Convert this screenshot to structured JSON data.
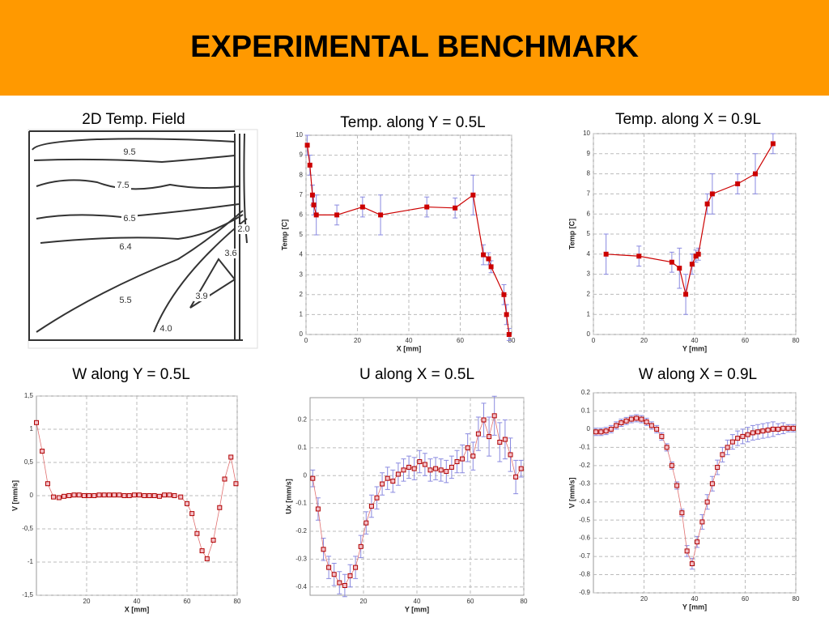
{
  "header": {
    "title": "EXPERIMENTAL BENCHMARK"
  },
  "field": {
    "title": "2D Temp. Field",
    "labels": [
      "9.5",
      "7.5",
      "6.5",
      "6.4",
      "5.5",
      "3.9",
      "4.0",
      "3.6",
      "2.0"
    ]
  },
  "chart_data": [
    {
      "type": "line",
      "title": "Temp. along Y = 0.5L",
      "x_label": "X [mm]",
      "y_label": "Temp [C]",
      "color": "#cc0000",
      "error_color": "#8a8ae0",
      "marker": "filled",
      "grid": true,
      "x": [
        0.5,
        1.5,
        2.5,
        3,
        4,
        12,
        22,
        29,
        47,
        58,
        65,
        69,
        71,
        72,
        77,
        78,
        79
      ],
      "values": [
        9.5,
        8.5,
        7,
        6.5,
        6,
        6,
        6.4,
        6,
        6.4,
        6.35,
        7,
        4,
        3.8,
        3.4,
        2,
        1,
        0
      ],
      "errors": [
        0.5,
        0.5,
        0.5,
        0.5,
        1,
        0.5,
        0.5,
        1,
        0.5,
        0.5,
        1,
        0.5,
        0.3,
        0.3,
        0.5,
        0.5,
        0.3
      ],
      "xlim": [
        0,
        80
      ],
      "xticks": [
        0,
        20,
        40,
        60,
        80
      ],
      "ylim": [
        0,
        10
      ],
      "yticks": [
        0,
        1,
        2,
        3,
        4,
        5,
        6,
        7,
        8,
        9,
        10
      ]
    },
    {
      "type": "line",
      "title": "Temp. along X = 0.9L",
      "x_label": "Y [mm]",
      "y_label": "Temp [C]",
      "color": "#cc0000",
      "error_color": "#8a8ae0",
      "marker": "filled",
      "grid": true,
      "x": [
        5,
        18,
        31,
        34,
        36.5,
        39,
        40.5,
        41.5,
        45,
        47,
        57,
        64,
        71
      ],
      "values": [
        4,
        3.9,
        3.6,
        3.3,
        2,
        3.5,
        3.9,
        4,
        6.5,
        7,
        7.5,
        8,
        9.5
      ],
      "errors": [
        1,
        0.5,
        0.5,
        1,
        1,
        0.5,
        0.3,
        0.3,
        0.5,
        1,
        0.5,
        1,
        0.5
      ],
      "xlim": [
        0,
        80
      ],
      "xticks": [
        0,
        20,
        40,
        60,
        80
      ],
      "ylim": [
        0,
        10
      ],
      "yticks": [
        0,
        1,
        2,
        3,
        4,
        5,
        6,
        7,
        8,
        9,
        10
      ]
    },
    {
      "type": "line",
      "title": "W along Y = 0.5L",
      "x_label": "X [mm]",
      "y_label": "V [mm/s]",
      "color": "#e07070",
      "error_color": "#8a8ae0",
      "marker": "open",
      "grid": true,
      "x": [
        0,
        2.3,
        4.5,
        6.8,
        9,
        11,
        13,
        15,
        17,
        19,
        21,
        23,
        25,
        27,
        29,
        31,
        33,
        35,
        37,
        39,
        41,
        43,
        45,
        47,
        49,
        51,
        53,
        55,
        57.5,
        60,
        62,
        64,
        66,
        68,
        70.5,
        73,
        75,
        77.5,
        79.5
      ],
      "values": [
        1.1,
        0.67,
        0.18,
        -0.02,
        -0.03,
        -0.01,
        0,
        0.01,
        0.01,
        0,
        0,
        0,
        0.01,
        0.01,
        0.01,
        0.01,
        0.01,
        0,
        0,
        0.01,
        0.01,
        0,
        0,
        0,
        -0.01,
        0.01,
        0.01,
        0,
        -0.02,
        -0.12,
        -0.27,
        -0.57,
        -0.83,
        -0.95,
        -0.67,
        -0.18,
        0.25,
        0.58,
        0.18
      ],
      "xlim": [
        0,
        80
      ],
      "xticks": [
        20,
        40,
        60,
        80
      ],
      "ylim": [
        -1.5,
        1.5
      ],
      "yticks": [
        {
          "value": -1.5,
          "label": "-1,5"
        },
        -1,
        {
          "value": -0.5,
          "label": "-0,5"
        },
        0,
        {
          "value": 0.5,
          "label": "0,5"
        },
        1,
        {
          "value": 1.5,
          "label": "1,5"
        }
      ]
    },
    {
      "type": "line",
      "title": "U along X = 0.5L",
      "x_label": "Y [mm]",
      "y_label": "Ux [mm/s]",
      "color": "#e07070",
      "error_color": "#8a8ae0",
      "marker": "open",
      "grid": true,
      "x": [
        1,
        3,
        5,
        7,
        9,
        11,
        13,
        15,
        17,
        19,
        21,
        23,
        25,
        27,
        29,
        31,
        33,
        35,
        37,
        39,
        41,
        43,
        45,
        47,
        49,
        51,
        53,
        55,
        57,
        59,
        61,
        63,
        65,
        67,
        69,
        71,
        73,
        75,
        77,
        79
      ],
      "values": [
        -0.01,
        -0.12,
        -0.265,
        -0.33,
        -0.355,
        -0.385,
        -0.395,
        -0.36,
        -0.33,
        -0.255,
        -0.17,
        -0.11,
        -0.08,
        -0.03,
        -0.01,
        -0.02,
        0.005,
        0.02,
        0.03,
        0.025,
        0.05,
        0.04,
        0.02,
        0.025,
        0.02,
        0.015,
        0.03,
        0.05,
        0.06,
        0.1,
        0.07,
        0.15,
        0.2,
        0.14,
        0.215,
        0.12,
        0.13,
        0.075,
        -0.005,
        0.025
      ],
      "errors": [
        0.03,
        0.04,
        0.04,
        0.04,
        0.04,
        0.04,
        0.04,
        0.04,
        0.04,
        0.04,
        0.04,
        0.04,
        0.04,
        0.04,
        0.04,
        0.04,
        0.04,
        0.04,
        0.04,
        0.04,
        0.04,
        0.04,
        0.04,
        0.04,
        0.04,
        0.04,
        0.04,
        0.04,
        0.05,
        0.05,
        0.05,
        0.06,
        0.06,
        0.07,
        0.07,
        0.07,
        0.07,
        0.06,
        0.06,
        0.03
      ],
      "xlim": [
        0,
        80
      ],
      "xticks": [
        20,
        40,
        60,
        80
      ],
      "ylim": [
        -0.43,
        0.28
      ],
      "yticks": [
        -0.4,
        -0.3,
        -0.2,
        -0.1,
        0,
        0.1,
        0.2
      ]
    },
    {
      "type": "line",
      "title": "W along X = 0.9L",
      "x_label": "Y [mm]",
      "y_label": "V [mm/s]",
      "color": "#e07070",
      "error_color": "#8a8ae0",
      "marker": "open",
      "grid": true,
      "x": [
        1,
        3,
        5,
        7,
        9,
        11,
        13,
        15,
        17,
        19,
        21,
        23,
        25,
        27,
        29,
        31,
        33,
        35,
        37,
        39,
        41,
        43,
        45,
        47,
        49,
        51,
        53,
        55,
        57,
        59,
        61,
        63,
        65,
        67,
        69,
        71,
        73,
        75,
        77,
        79
      ],
      "values": [
        -0.015,
        -0.015,
        -0.01,
        0,
        0.02,
        0.035,
        0.045,
        0.055,
        0.06,
        0.055,
        0.04,
        0.02,
        0,
        -0.04,
        -0.1,
        -0.2,
        -0.31,
        -0.46,
        -0.67,
        -0.74,
        -0.62,
        -0.51,
        -0.4,
        -0.3,
        -0.21,
        -0.14,
        -0.1,
        -0.07,
        -0.05,
        -0.04,
        -0.03,
        -0.02,
        -0.015,
        -0.01,
        -0.005,
        0,
        0,
        0.005,
        0.005,
        0.005
      ],
      "errors": [
        0.02,
        0.02,
        0.02,
        0.02,
        0.02,
        0.02,
        0.02,
        0.02,
        0.02,
        0.02,
        0.02,
        0.02,
        0.02,
        0.02,
        0.02,
        0.02,
        0.02,
        0.02,
        0.03,
        0.03,
        0.03,
        0.04,
        0.04,
        0.04,
        0.04,
        0.04,
        0.04,
        0.04,
        0.04,
        0.04,
        0.04,
        0.04,
        0.04,
        0.04,
        0.04,
        0.04,
        0.03,
        0.03,
        0.02,
        0.02
      ],
      "xlim": [
        0,
        80
      ],
      "xticks": [
        20,
        40,
        60,
        80
      ],
      "ylim": [
        -0.9,
        0.2
      ],
      "yticks": [
        -0.9,
        -0.8,
        -0.7,
        -0.6,
        -0.5,
        -0.4,
        -0.3,
        -0.2,
        -0.1,
        0,
        0.1,
        0.2
      ]
    }
  ]
}
